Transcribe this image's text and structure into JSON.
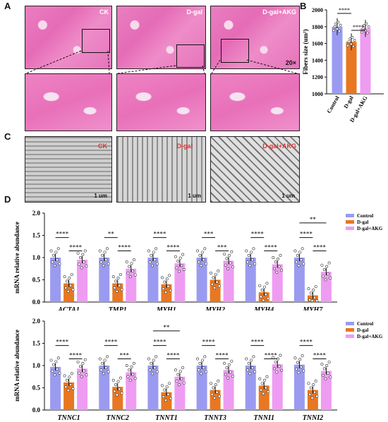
{
  "panels": {
    "a": "A",
    "b": "B",
    "c": "C",
    "d": "D"
  },
  "panelA": {
    "labels": [
      "CK",
      "D-gal",
      "D-gal+AKG"
    ],
    "magnification": "20×"
  },
  "panelC": {
    "labels": [
      "CK",
      "D-gal",
      "D-gal+AKG"
    ],
    "scalebars": [
      "1 um",
      "1 um",
      "1 um"
    ]
  },
  "colors": {
    "control": "#9a9bf0",
    "dgal": "#e87722",
    "akg": "#ee9cf2",
    "star": "#111111"
  },
  "chart_data": [
    {
      "type": "bar",
      "categories": [
        "Control",
        "D-gal",
        "D-gal+AKG"
      ],
      "values": [
        1800,
        1620,
        1780
      ],
      "ylabel": "Fibers size (um²)",
      "ylim": [
        1000,
        2000
      ],
      "yticks": [
        "1000",
        "1200",
        "1400",
        "1600",
        "1800",
        "2000"
      ],
      "significance": [
        "****",
        "****"
      ]
    },
    {
      "type": "bar",
      "ylabel": "mRNA relative abundance",
      "ylim": [
        0,
        2.0
      ],
      "yticks": [
        "0.0",
        "0.5",
        "1.0",
        "1.5",
        "2.0"
      ],
      "legend": [
        "Control",
        "D-gal",
        "D-gal+AKG"
      ],
      "categories": [
        "ACTA1",
        "TMP1",
        "MYH1",
        "MYH2",
        "MYH4",
        "MYH7"
      ],
      "series": [
        {
          "name": "Control",
          "values": [
            1.0,
            1.0,
            1.0,
            1.0,
            1.0,
            1.0
          ]
        },
        {
          "name": "D-gal",
          "values": [
            0.42,
            0.42,
            0.4,
            0.5,
            0.22,
            0.15
          ]
        },
        {
          "name": "D-gal+AKG",
          "values": [
            0.95,
            0.75,
            0.87,
            0.93,
            0.85,
            0.68
          ]
        }
      ],
      "significance": [
        [
          "****",
          "****"
        ],
        [
          "**",
          "****"
        ],
        [
          "****",
          "****"
        ],
        [
          "***",
          "***"
        ],
        [
          "****",
          "****"
        ],
        [
          "****",
          "****",
          "**"
        ]
      ]
    },
    {
      "type": "bar",
      "ylabel": "mRNA relative abundance",
      "ylim": [
        0,
        2.0
      ],
      "yticks": [
        "0.0",
        "0.5",
        "1.0",
        "1.5",
        "2.0"
      ],
      "legend": [
        "Control",
        "D-gal",
        "D-gal+AKG"
      ],
      "categories": [
        "TNNC1",
        "TNNC2",
        "TNNT1",
        "TNNT3",
        "TNNI1",
        "TNNI2"
      ],
      "series": [
        {
          "name": "Control",
          "values": [
            0.97,
            1.0,
            1.0,
            1.0,
            1.0,
            1.02
          ]
        },
        {
          "name": "D-gal",
          "values": [
            0.62,
            0.52,
            0.4,
            0.45,
            0.55,
            0.45
          ]
        },
        {
          "name": "D-gal+AKG",
          "values": [
            0.93,
            0.85,
            0.75,
            0.9,
            1.03,
            0.88
          ]
        }
      ],
      "significance": [
        [
          "****",
          "****"
        ],
        [
          "****",
          "***"
        ],
        [
          "****",
          "****",
          "**"
        ],
        [
          "****",
          "****"
        ],
        [
          "****",
          "****"
        ],
        [
          "****",
          "****"
        ]
      ]
    }
  ]
}
